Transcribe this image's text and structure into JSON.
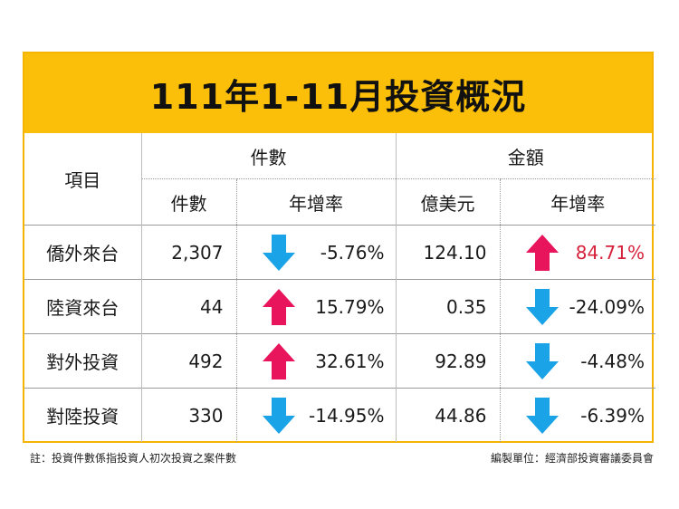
{
  "title": "111年1-11月投資概況",
  "header": {
    "item": "項目",
    "count_group": "件數",
    "amount_group": "金額",
    "count_col": "件數",
    "count_growth": "年增率",
    "amount_col": "億美元",
    "amount_growth": "年增率"
  },
  "rows": [
    {
      "label": "僑外來台",
      "count": "2,307",
      "count_dir": "down",
      "count_growth": "-5.76%",
      "amount": "124.10",
      "amount_dir": "up",
      "amount_growth": "84.71%"
    },
    {
      "label": "陸資來台",
      "count": "44",
      "count_dir": "up",
      "count_growth": "15.79%",
      "amount": "0.35",
      "amount_dir": "down",
      "amount_growth": "-24.09%"
    },
    {
      "label": "對外投資",
      "count": "492",
      "count_dir": "up",
      "count_growth": "32.61%",
      "amount": "92.89",
      "amount_dir": "down",
      "amount_growth": "-4.48%"
    },
    {
      "label": "對陸投資",
      "count": "330",
      "count_dir": "down",
      "count_growth": "-14.95%",
      "amount": "44.86",
      "amount_dir": "down",
      "amount_growth": "-6.39%"
    }
  ],
  "footnote": "註：投資件數係指投資人初次投資之案件數",
  "source": "編製單位：經濟部投資審議委員會",
  "colors": {
    "up": "#e8155c",
    "down": "#1aa3e6",
    "highlight": "#d6213b",
    "title_bg": "#fbbf0a"
  }
}
